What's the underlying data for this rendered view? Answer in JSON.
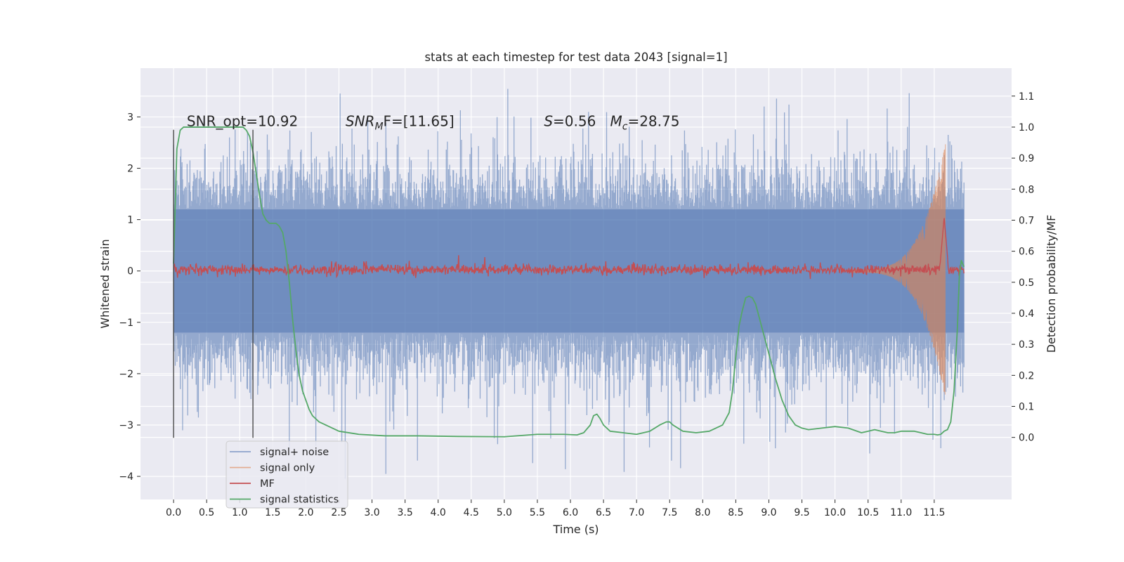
{
  "chart_data": {
    "type": "line",
    "title": "stats at each timestep for test data 2043 [signal=1]",
    "xlabel": "Time (s)",
    "ylabel": "Whitened strain",
    "y2label": "Detection probability/MF",
    "xlim": [
      -0.5,
      12.67
    ],
    "ylim": [
      -4.45,
      3.95
    ],
    "y2lim": [
      -0.2,
      1.19
    ],
    "x_ticks": [
      0.0,
      0.5,
      1.0,
      1.5,
      2.0,
      2.5,
      3.0,
      3.5,
      4.0,
      4.5,
      5.0,
      5.5,
      6.0,
      6.5,
      7.0,
      7.5,
      8.0,
      8.5,
      9.0,
      9.5,
      10.0,
      10.5,
      11.0,
      11.5
    ],
    "y_ticks": [
      3,
      2,
      1,
      0,
      -1,
      -2,
      -3,
      -4
    ],
    "y_tick_labels": [
      "3",
      "2",
      "1",
      "0",
      "−1",
      "−2",
      "−3",
      "−4"
    ],
    "y2_ticks": [
      1.1,
      1.0,
      0.9,
      0.8,
      0.7,
      0.6,
      0.5,
      0.4,
      0.3,
      0.2,
      0.1,
      0.0
    ],
    "grid": true,
    "legend_position": "lower-left",
    "annotations": [
      {
        "id": "snr-opt",
        "x": 0.2,
        "y": 2.82,
        "text": "SNR_opt=10.92"
      },
      {
        "id": "snr-mf",
        "x": 2.6,
        "y": 2.82,
        "math_base": "SNR",
        "math_sub": "M",
        "math_rest": "F=[11.65]"
      },
      {
        "id": "s-val",
        "x": 5.6,
        "y": 2.82,
        "math_base": "S",
        "math_rest": "=0.56"
      },
      {
        "id": "mc-val",
        "x": 6.6,
        "y": 2.82,
        "math_base": "M",
        "math_sub": "c",
        "math_rest": "=28.75"
      }
    ],
    "vlines": [
      {
        "x": 0.0,
        "ymin": -3.25,
        "ymax": 2.75
      },
      {
        "x": 1.2,
        "ymin": -3.25,
        "ymax": 2.75
      }
    ],
    "series": [
      {
        "name": "signal+ noise",
        "color": "#4c72b0",
        "axis": "left",
        "band_extent": 1.2,
        "spike_max": 3.6,
        "spike_min": -4.1,
        "x_range": [
          0.0,
          11.95
        ]
      },
      {
        "name": "signal only",
        "color": "#dd8452",
        "axis": "left",
        "chirp_peak_time": 11.65,
        "chirp_peak_amplitude": 2.35,
        "x_range": [
          0.0,
          11.95
        ]
      },
      {
        "name": "MF",
        "color": "#c44e52",
        "axis": "right",
        "baseline": 0.54,
        "peak_time": 11.65,
        "peak_value": 0.71,
        "x_range": [
          0.0,
          11.95
        ]
      },
      {
        "name": "signal statistics",
        "color": "#55a868",
        "axis": "right",
        "x": [
          0.0,
          0.05,
          0.1,
          0.15,
          0.2,
          0.3,
          0.5,
          0.8,
          1.0,
          1.05,
          1.1,
          1.15,
          1.2,
          1.25,
          1.3,
          1.35,
          1.4,
          1.45,
          1.5,
          1.55,
          1.6,
          1.65,
          1.7,
          1.75,
          1.8,
          1.85,
          1.9,
          1.95,
          2.0,
          2.05,
          2.1,
          2.2,
          2.3,
          2.5,
          2.8,
          3.2,
          3.7,
          4.3,
          5.0,
          5.5,
          5.9,
          6.1,
          6.2,
          6.3,
          6.35,
          6.4,
          6.45,
          6.5,
          6.6,
          6.8,
          7.0,
          7.2,
          7.35,
          7.45,
          7.5,
          7.55,
          7.7,
          7.9,
          8.1,
          8.3,
          8.4,
          8.45,
          8.5,
          8.55,
          8.6,
          8.65,
          8.7,
          8.75,
          8.8,
          8.85,
          8.9,
          9.0,
          9.1,
          9.2,
          9.3,
          9.4,
          9.5,
          9.6,
          9.8,
          10.0,
          10.2,
          10.4,
          10.5,
          10.6,
          10.7,
          10.8,
          10.9,
          11.0,
          11.1,
          11.2,
          11.3,
          11.4,
          11.5,
          11.55,
          11.6,
          11.65,
          11.7,
          11.75,
          11.8,
          11.85,
          11.88,
          11.91,
          11.95
        ],
        "values": [
          0.56,
          0.93,
          0.99,
          1.0,
          1.0,
          1.0,
          1.0,
          1.0,
          1.0,
          1.0,
          0.99,
          0.97,
          0.92,
          0.85,
          0.78,
          0.72,
          0.7,
          0.69,
          0.69,
          0.69,
          0.68,
          0.66,
          0.6,
          0.5,
          0.38,
          0.28,
          0.2,
          0.15,
          0.12,
          0.09,
          0.07,
          0.05,
          0.04,
          0.02,
          0.01,
          0.005,
          0.005,
          0.003,
          0.002,
          0.01,
          0.01,
          0.008,
          0.015,
          0.04,
          0.07,
          0.075,
          0.06,
          0.04,
          0.02,
          0.015,
          0.01,
          0.02,
          0.04,
          0.05,
          0.05,
          0.04,
          0.02,
          0.015,
          0.02,
          0.04,
          0.08,
          0.15,
          0.26,
          0.36,
          0.41,
          0.45,
          0.455,
          0.45,
          0.43,
          0.39,
          0.35,
          0.27,
          0.19,
          0.12,
          0.07,
          0.04,
          0.03,
          0.025,
          0.03,
          0.035,
          0.03,
          0.015,
          0.02,
          0.025,
          0.02,
          0.015,
          0.015,
          0.02,
          0.02,
          0.02,
          0.015,
          0.01,
          0.01,
          0.008,
          0.01,
          0.02,
          0.025,
          0.05,
          0.15,
          0.35,
          0.52,
          0.57,
          0.55
        ]
      }
    ]
  }
}
